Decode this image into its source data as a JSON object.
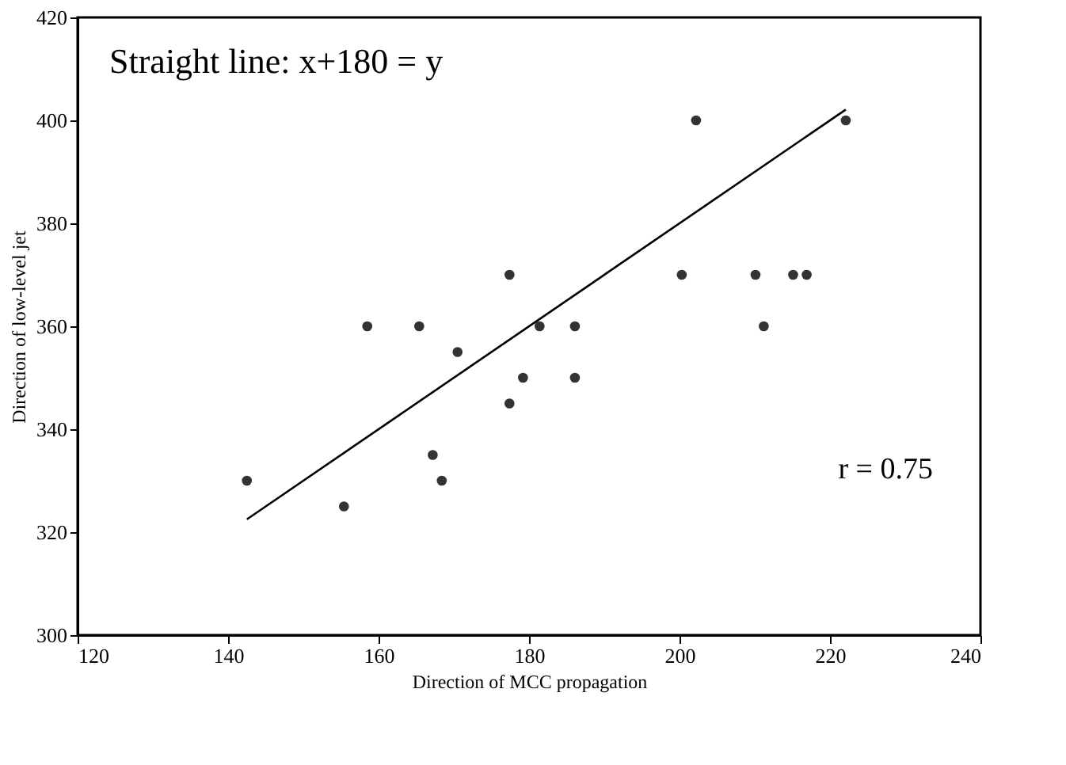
{
  "chart_data": {
    "type": "scatter",
    "xlabel": "Direction of MCC propagation",
    "ylabel": "Direction of low-level jet",
    "annotations": [
      "Straight line: x+180 = y",
      "r = 0.75"
    ],
    "xlim": [
      120,
      240
    ],
    "xticks": [
      120,
      140,
      160,
      180,
      200,
      220,
      240
    ],
    "ylim": [
      300,
      420
    ],
    "yticks": [
      300,
      320,
      340,
      360,
      380,
      400,
      420
    ],
    "grid": false,
    "marker": "circle",
    "series": [
      {
        "color": "#333333",
        "x": [
          142.5,
          155.4,
          158.5,
          165.4,
          170.5,
          167.2,
          168.4,
          177.4,
          177.4,
          179.2,
          181.4,
          186.1,
          186.1,
          202.2,
          200.3,
          210.1,
          211.2,
          215.1,
          216.9,
          222.1
        ],
        "values": [
          330,
          325,
          360,
          360,
          355,
          335,
          330,
          370,
          345,
          350,
          360,
          360,
          350,
          400,
          370,
          370,
          360,
          370,
          370,
          400
        ]
      },
      {
        "type": "line",
        "color": "#000000",
        "line_style": "solid",
        "marker": "none",
        "x": [
          142.5,
          222.1
        ],
        "values": [
          322.5,
          402.1
        ]
      }
    ]
  }
}
